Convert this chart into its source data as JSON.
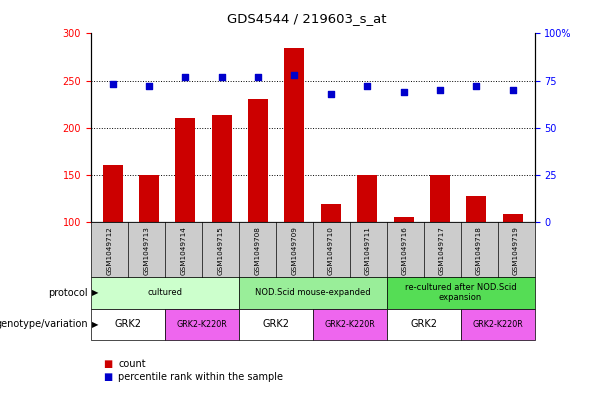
{
  "title": "GDS4544 / 219603_s_at",
  "samples": [
    "GSM1049712",
    "GSM1049713",
    "GSM1049714",
    "GSM1049715",
    "GSM1049708",
    "GSM1049709",
    "GSM1049710",
    "GSM1049711",
    "GSM1049716",
    "GSM1049717",
    "GSM1049718",
    "GSM1049719"
  ],
  "counts": [
    160,
    150,
    210,
    214,
    230,
    285,
    119,
    150,
    105,
    150,
    128,
    109
  ],
  "percentiles": [
    73,
    72,
    77,
    77,
    77,
    78,
    68,
    72,
    69,
    70,
    72,
    70
  ],
  "bar_color": "#cc0000",
  "dot_color": "#0000cc",
  "ylim_left": [
    100,
    300
  ],
  "ylim_right": [
    0,
    100
  ],
  "yticks_left": [
    100,
    150,
    200,
    250,
    300
  ],
  "yticks_right": [
    0,
    25,
    50,
    75,
    100
  ],
  "protocol_groups": [
    {
      "label": "cultured",
      "start": 0,
      "end": 4,
      "color": "#ccffcc"
    },
    {
      "label": "NOD.Scid mouse-expanded",
      "start": 4,
      "end": 8,
      "color": "#99ee99"
    },
    {
      "label": "re-cultured after NOD.Scid\nexpansion",
      "start": 8,
      "end": 12,
      "color": "#55dd55"
    }
  ],
  "genotype_groups": [
    {
      "label": "GRK2",
      "start": 0,
      "end": 2,
      "color": "#ffffff"
    },
    {
      "label": "GRK2-K220R",
      "start": 2,
      "end": 4,
      "color": "#ee66ee"
    },
    {
      "label": "GRK2",
      "start": 4,
      "end": 6,
      "color": "#ffffff"
    },
    {
      "label": "GRK2-K220R",
      "start": 6,
      "end": 8,
      "color": "#ee66ee"
    },
    {
      "label": "GRK2",
      "start": 8,
      "end": 10,
      "color": "#ffffff"
    },
    {
      "label": "GRK2-K220R",
      "start": 10,
      "end": 12,
      "color": "#ee66ee"
    }
  ],
  "protocol_label": "protocol",
  "genotype_label": "genotype/variation",
  "legend_count_label": "count",
  "legend_pct_label": "percentile rank within the sample",
  "grid_dotted_values": [
    150,
    200,
    250
  ],
  "background_color": "#ffffff",
  "plot_bg_color": "#ffffff",
  "tick_label_bg": "#cccccc",
  "separator_color": "#999999"
}
